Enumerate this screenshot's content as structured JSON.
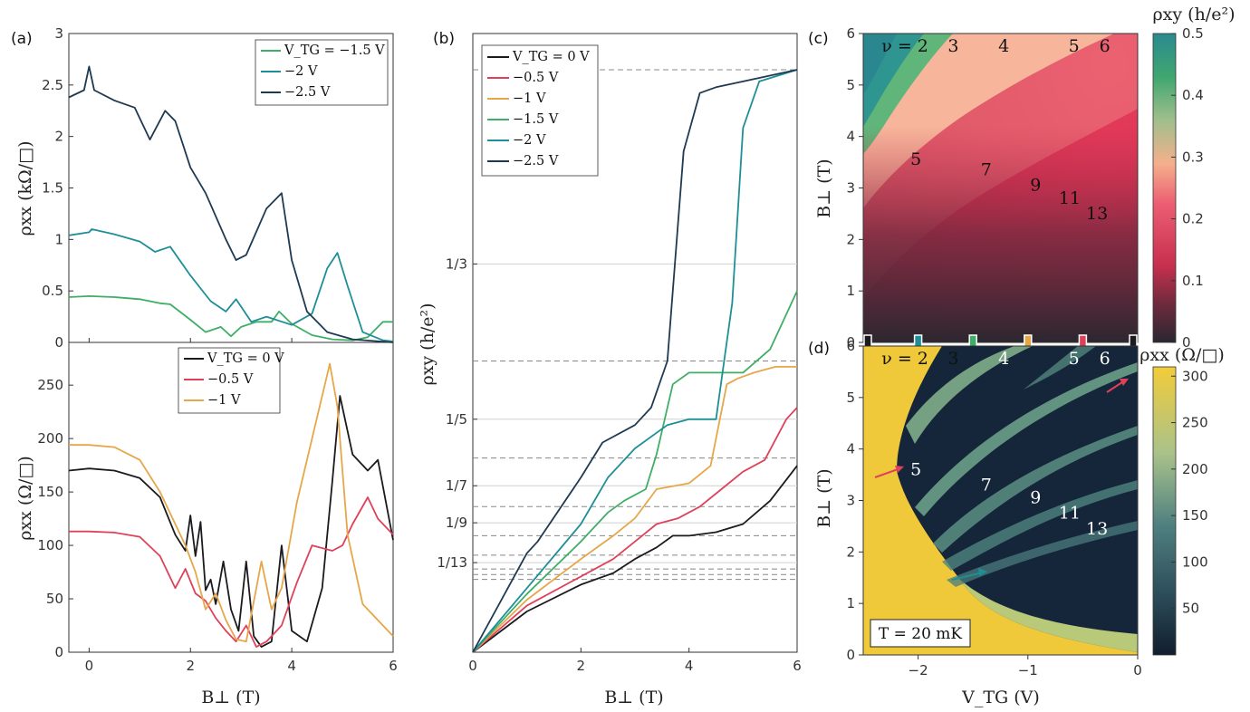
{
  "colors": {
    "v0": "#1b1b1f",
    "v05": "#e0415a",
    "v1": "#e6a64a",
    "v15": "#3fae66",
    "v2": "#1f8f97",
    "v25": "#1e3a52",
    "hall_grid": "#888888",
    "map_yellow": "#f0c93a",
    "map_dark": "#15263a"
  },
  "panels": {
    "a": "(a)",
    "b": "(b)",
    "c": "(c)",
    "d": "(d)"
  },
  "temperature_label": "T = 20 mK",
  "chart_data": [
    {
      "id": "a-top",
      "type": "line",
      "ylabel": "ρxx (kΩ/□)",
      "xlim": [
        -0.4,
        6
      ],
      "ylim": [
        0,
        3
      ],
      "yticks": [
        "0",
        "0.5",
        "1",
        "1.5",
        "2",
        "2.5",
        "3"
      ],
      "series": [
        {
          "name": "V_TG = −1.5 V",
          "color": "#3fae66",
          "x": [
            -0.4,
            0,
            0.5,
            1.0,
            1.4,
            1.6,
            2.0,
            2.3,
            2.6,
            2.8,
            3.0,
            3.3,
            3.6,
            3.75,
            4.0,
            4.4,
            4.8,
            5.2,
            5.5,
            5.8,
            6
          ],
          "y": [
            0.44,
            0.45,
            0.44,
            0.42,
            0.38,
            0.37,
            0.22,
            0.1,
            0.15,
            0.06,
            0.15,
            0.2,
            0.2,
            0.3,
            0.18,
            0.07,
            0.03,
            0.02,
            0.05,
            0.2,
            0.2
          ]
        },
        {
          "name": "−2 V",
          "color": "#1f8f97",
          "x": [
            -0.4,
            0,
            0.05,
            0.5,
            1.0,
            1.3,
            1.6,
            2.0,
            2.4,
            2.7,
            2.9,
            3.2,
            3.5,
            4.0,
            4.4,
            4.7,
            4.9,
            5.1,
            5.4,
            5.8,
            6
          ],
          "y": [
            1.04,
            1.07,
            1.1,
            1.05,
            0.98,
            0.88,
            0.93,
            0.65,
            0.4,
            0.3,
            0.42,
            0.2,
            0.25,
            0.17,
            0.28,
            0.72,
            0.87,
            0.55,
            0.1,
            0.02,
            0.01
          ]
        },
        {
          "name": "−2.5 V",
          "color": "#1e3a52",
          "x": [
            -0.4,
            -0.1,
            0,
            0.1,
            0.5,
            0.9,
            1.2,
            1.5,
            1.7,
            2.0,
            2.3,
            2.7,
            2.9,
            3.1,
            3.5,
            3.8,
            4.0,
            4.3,
            4.7,
            5.2,
            6
          ],
          "y": [
            2.38,
            2.45,
            2.68,
            2.45,
            2.35,
            2.28,
            1.97,
            2.25,
            2.15,
            1.7,
            1.45,
            1.0,
            0.8,
            0.85,
            1.3,
            1.45,
            0.8,
            0.3,
            0.1,
            0.03,
            0.0
          ]
        }
      ]
    },
    {
      "id": "a-bottom",
      "type": "line",
      "xlabel": "B⊥ (T)",
      "ylabel": "ρxx (Ω/□)",
      "xlim": [
        -0.4,
        6
      ],
      "ylim": [
        0,
        290
      ],
      "xticks": [
        "0",
        "2",
        "4",
        "6"
      ],
      "yticks": [
        "0",
        "50",
        "100",
        "150",
        "200",
        "250"
      ],
      "series": [
        {
          "name": "V_TG = 0 V",
          "color": "#1b1b1f",
          "x": [
            -0.4,
            0,
            0.5,
            1.0,
            1.4,
            1.7,
            1.9,
            2.0,
            2.1,
            2.2,
            2.3,
            2.4,
            2.5,
            2.65,
            2.8,
            2.95,
            3.1,
            3.25,
            3.4,
            3.6,
            3.8,
            4.0,
            4.3,
            4.6,
            4.8,
            4.95,
            5.2,
            5.5,
            5.7,
            6
          ],
          "y": [
            170,
            172,
            170,
            163,
            145,
            110,
            95,
            128,
            90,
            122,
            58,
            68,
            45,
            85,
            40,
            20,
            85,
            15,
            5,
            10,
            100,
            20,
            10,
            60,
            160,
            240,
            185,
            170,
            180,
            105
          ]
        },
        {
          "name": "−0.5 V",
          "color": "#e0415a",
          "x": [
            -0.4,
            0,
            0.5,
            1.0,
            1.4,
            1.7,
            1.9,
            2.1,
            2.3,
            2.5,
            2.7,
            2.9,
            3.1,
            3.3,
            3.5,
            3.8,
            4.1,
            4.4,
            4.8,
            5.0,
            5.2,
            5.5,
            5.7,
            6
          ],
          "y": [
            113,
            113,
            112,
            108,
            90,
            60,
            78,
            55,
            48,
            32,
            20,
            10,
            25,
            5,
            10,
            25,
            65,
            100,
            95,
            100,
            120,
            145,
            125,
            110
          ]
        },
        {
          "name": "−1 V",
          "color": "#e6a64a",
          "x": [
            -0.4,
            0,
            0.5,
            1.0,
            1.4,
            1.7,
            1.9,
            2.1,
            2.3,
            2.5,
            2.7,
            2.9,
            3.1,
            3.4,
            3.6,
            3.8,
            4.1,
            4.5,
            4.75,
            4.9,
            5.1,
            5.4,
            5.8,
            6
          ],
          "y": [
            194,
            194,
            192,
            180,
            150,
            120,
            100,
            75,
            40,
            55,
            30,
            12,
            10,
            85,
            40,
            60,
            140,
            220,
            270,
            230,
            110,
            45,
            25,
            15
          ]
        }
      ]
    },
    {
      "id": "b",
      "type": "line",
      "xlabel": "B⊥ (T)",
      "ylabel": "ρxy (h/e²)",
      "xlim": [
        0,
        6
      ],
      "ylim": [
        0,
        0.5
      ],
      "xticks": [
        "0",
        "2",
        "4",
        "6"
      ],
      "yticks": [
        {
          "label": "1/3",
          "v": 0.3333
        },
        {
          "label": "1/5",
          "v": 0.2
        },
        {
          "label": "1/7",
          "v": 0.1429
        },
        {
          "label": "1/9",
          "v": 0.1111
        },
        {
          "label": "1/13",
          "v": 0.0769
        }
      ],
      "guide_lines": [
        0.5,
        0.25,
        0.1667,
        0.125,
        0.1,
        0.0833,
        0.0714,
        0.0667,
        0.0625
      ],
      "series": [
        {
          "name": "V_TG = 0 V",
          "color": "#1b1b1f",
          "x": [
            0,
            1,
            2,
            2.6,
            3,
            3.4,
            3.7,
            4.0,
            4.5,
            5,
            5.5,
            6
          ],
          "y": [
            0,
            0.035,
            0.058,
            0.068,
            0.08,
            0.09,
            0.1,
            0.1,
            0.103,
            0.11,
            0.13,
            0.16
          ]
        },
        {
          "name": "−0.5 V",
          "color": "#e0415a",
          "x": [
            0,
            1,
            2,
            2.6,
            3,
            3.4,
            3.8,
            4.2,
            4.6,
            5,
            5.4,
            5.8,
            6
          ],
          "y": [
            0,
            0.04,
            0.065,
            0.08,
            0.095,
            0.11,
            0.115,
            0.125,
            0.14,
            0.155,
            0.165,
            0.2,
            0.21
          ]
        },
        {
          "name": "−1 V",
          "color": "#e6a64a",
          "x": [
            0,
            1,
            2,
            2.6,
            3.0,
            3.4,
            4.0,
            4.4,
            4.7,
            4.9,
            5.2,
            5.6,
            6
          ],
          "y": [
            0,
            0.045,
            0.08,
            0.1,
            0.115,
            0.14,
            0.145,
            0.16,
            0.23,
            0.235,
            0.24,
            0.245,
            0.245
          ]
        },
        {
          "name": "−1.5 V",
          "color": "#3fae66",
          "x": [
            0,
            1,
            2,
            2.5,
            2.8,
            3.2,
            3.4,
            3.7,
            4.0,
            4.3,
            5,
            5.5,
            6
          ],
          "y": [
            0,
            0.05,
            0.095,
            0.12,
            0.13,
            0.14,
            0.17,
            0.23,
            0.24,
            0.24,
            0.24,
            0.26,
            0.31
          ]
        },
        {
          "name": "−2 V",
          "color": "#1f8f97",
          "x": [
            0,
            1,
            2,
            2.5,
            3.0,
            3.6,
            4.0,
            4.5,
            4.8,
            5.0,
            5.3,
            6
          ],
          "y": [
            0,
            0.055,
            0.11,
            0.15,
            0.175,
            0.195,
            0.2,
            0.2,
            0.3,
            0.45,
            0.49,
            0.5
          ]
        },
        {
          "name": "−2.5 V",
          "color": "#1e3a52",
          "x": [
            0,
            1,
            1.2,
            2.0,
            2.4,
            3.0,
            3.3,
            3.6,
            3.9,
            4.2,
            4.5,
            5,
            6
          ],
          "y": [
            0,
            0.085,
            0.095,
            0.15,
            0.18,
            0.195,
            0.21,
            0.25,
            0.43,
            0.48,
            0.485,
            0.49,
            0.5
          ]
        }
      ]
    },
    {
      "id": "c",
      "type": "heatmap",
      "quantity": "ρxy",
      "colorbar_label": "ρxy (h/e²)",
      "colorbar_ticks": [
        "0",
        "0.1",
        "0.2",
        "0.3",
        "0.4",
        "0.5"
      ],
      "ylabel": "B⊥ (T)",
      "xlim": [
        -2.5,
        0
      ],
      "ylim": [
        0,
        6
      ],
      "yticks": [
        "0",
        "1",
        "2",
        "3",
        "4",
        "5",
        "6"
      ],
      "annotations": [
        {
          "text": "ν = 2",
          "x": -2.12,
          "y": 5.75
        },
        {
          "text": "3",
          "x": -1.68,
          "y": 5.75
        },
        {
          "text": "4",
          "x": -1.22,
          "y": 5.75
        },
        {
          "text": "5",
          "x": -0.58,
          "y": 5.75
        },
        {
          "text": "6",
          "x": -0.3,
          "y": 5.75
        },
        {
          "text": "5",
          "x": -2.02,
          "y": 3.55
        },
        {
          "text": "7",
          "x": -1.38,
          "y": 3.35
        },
        {
          "text": "9",
          "x": -0.93,
          "y": 3.05
        },
        {
          "text": "11",
          "x": -0.62,
          "y": 2.8
        },
        {
          "text": "13",
          "x": -0.37,
          "y": 2.5
        }
      ],
      "gate_markers": [
        {
          "x": -2.5,
          "color": "#1b1b1f"
        },
        {
          "x": -2.0,
          "color": "#1f8f97"
        },
        {
          "x": -1.5,
          "color": "#3fae66"
        },
        {
          "x": -1.0,
          "color": "#e6a64a"
        },
        {
          "x": -0.5,
          "color": "#e0415a"
        },
        {
          "x": 0.0,
          "color": "#1b1b1f"
        }
      ]
    },
    {
      "id": "d",
      "type": "heatmap",
      "quantity": "ρxx",
      "colorbar_label": "ρxx (Ω/□)",
      "colorbar_ticks": [
        "50",
        "100",
        "150",
        "200",
        "250",
        "300"
      ],
      "xlabel": "V_TG (V)",
      "ylabel": "B⊥ (T)",
      "xlim": [
        -2.5,
        0
      ],
      "ylim": [
        0,
        6
      ],
      "xticks": [
        "−2",
        "−1",
        "0"
      ],
      "yticks": [
        "0",
        "1",
        "2",
        "3",
        "4",
        "5",
        "6"
      ],
      "annotations": [
        {
          "text": "ν = 2",
          "x": -2.12,
          "y": 5.75
        },
        {
          "text": "3",
          "x": -1.68,
          "y": 5.75
        },
        {
          "text": "4",
          "x": -1.22,
          "y": 5.75
        },
        {
          "text": "5",
          "x": -0.58,
          "y": 5.75
        },
        {
          "text": "6",
          "x": -0.3,
          "y": 5.75
        },
        {
          "text": "5",
          "x": -2.02,
          "y": 3.6
        },
        {
          "text": "7",
          "x": -1.38,
          "y": 3.3
        },
        {
          "text": "9",
          "x": -0.93,
          "y": 3.05
        },
        {
          "text": "11",
          "x": -0.62,
          "y": 2.75
        },
        {
          "text": "13",
          "x": -0.37,
          "y": 2.45
        }
      ]
    }
  ]
}
